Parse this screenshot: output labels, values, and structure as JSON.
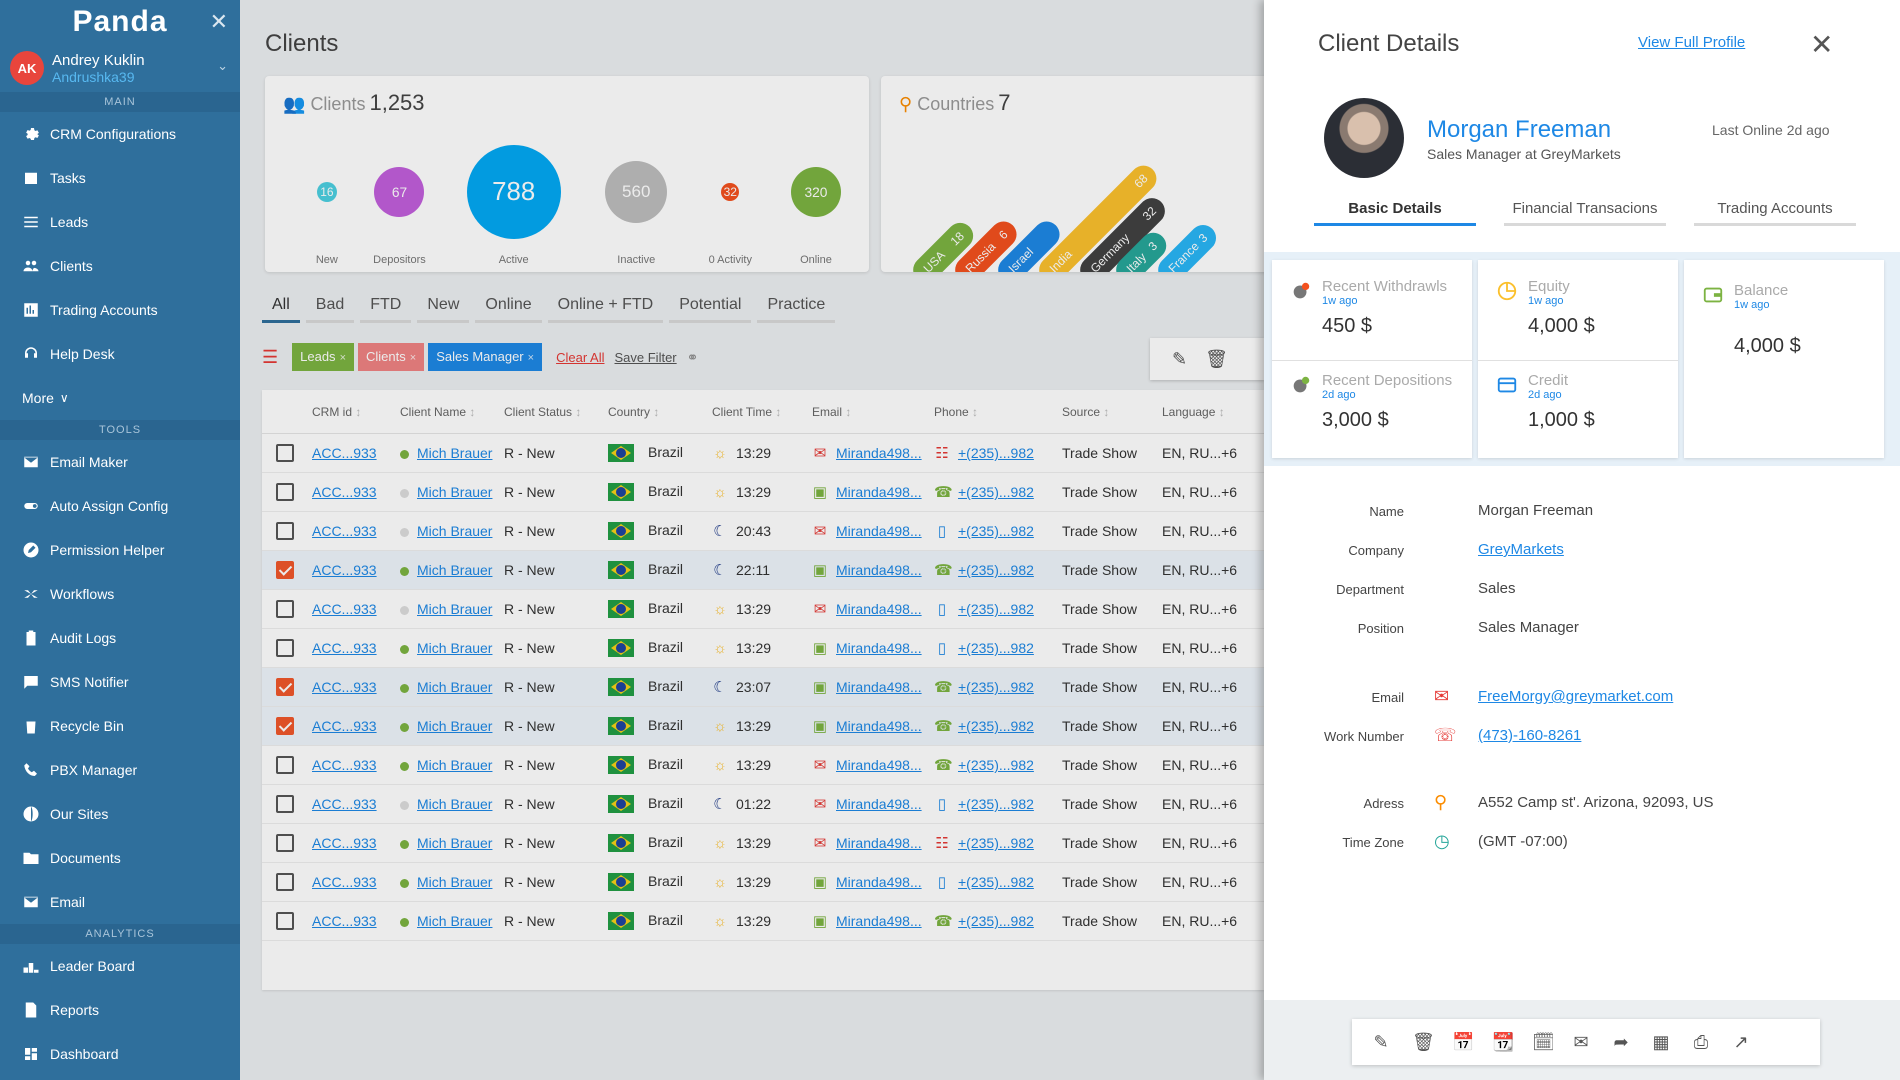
{
  "app": {
    "logo": "Panda",
    "close_glyph": "✕"
  },
  "user": {
    "initials": "AK",
    "name": "Andrey Kuklin",
    "handle": "Andrushka39",
    "chevron": "⌄"
  },
  "sidebar": {
    "main_title": "MAIN",
    "main": [
      {
        "label": "CRM Configurations",
        "icon": "gear-icon"
      },
      {
        "label": "Tasks",
        "icon": "calendar-icon"
      },
      {
        "label": "Leads",
        "icon": "list-icon"
      },
      {
        "label": "Clients",
        "icon": "users-icon"
      },
      {
        "label": "Trading Accounts",
        "icon": "bar-chart-icon"
      },
      {
        "label": "Help Desk",
        "icon": "headset-icon"
      }
    ],
    "more": "More",
    "tools_title": "TOOLS",
    "tools": [
      {
        "label": "Email Maker",
        "icon": "mail-icon"
      },
      {
        "label": "Auto Assign Config",
        "icon": "toggle-icon"
      },
      {
        "label": "Permission Helper",
        "icon": "pen-icon"
      },
      {
        "label": "Workflows",
        "icon": "shuffle-icon"
      },
      {
        "label": "Audit Logs",
        "icon": "clipboard-icon"
      },
      {
        "label": "SMS Notifier",
        "icon": "sms-icon"
      },
      {
        "label": "Recycle Bin",
        "icon": "recycle-icon"
      },
      {
        "label": "PBX Manager",
        "icon": "phone-icon"
      },
      {
        "label": "Our Sites",
        "icon": "globe-icon"
      },
      {
        "label": "Documents",
        "icon": "folder-icon"
      },
      {
        "label": "Email",
        "icon": "envelope-icon"
      }
    ],
    "analytics_title": "ANALYTICS",
    "analytics": [
      {
        "label": "Leader Board",
        "icon": "podium-icon"
      },
      {
        "label": "Reports",
        "icon": "report-icon"
      },
      {
        "label": "Dashboard",
        "icon": "dashboard-icon"
      }
    ]
  },
  "page": {
    "title": "Clients"
  },
  "clients_card": {
    "label": "Clients",
    "count": "1,253",
    "bubbles": [
      {
        "value": "16",
        "label": "New",
        "color": "#4dd0e1"
      },
      {
        "value": "67",
        "label": "Depositors",
        "color": "#c25fdc"
      },
      {
        "value": "788",
        "label": "Active",
        "color": "#03a9f4"
      },
      {
        "value": "560",
        "label": "Inactive",
        "color": "#bdbdbd"
      },
      {
        "value": "32",
        "label": "0 Activity",
        "color": "#f4511e"
      },
      {
        "value": "320",
        "label": "Online",
        "color": "#7cb342"
      }
    ]
  },
  "countries_card": {
    "label": "Countries",
    "count": "7",
    "pills": [
      {
        "name": "USA",
        "value": "18",
        "color": "#7cb342"
      },
      {
        "name": "Russia",
        "value": "6",
        "color": "#f4511e"
      },
      {
        "name": "Israel",
        "value": "",
        "color": "#1e88e5"
      },
      {
        "name": "India",
        "value": "68",
        "color": "#fbc02d"
      },
      {
        "name": "Germany",
        "value": "32",
        "color": "#424242"
      },
      {
        "name": "Italy",
        "value": "3",
        "color": "#26a69a"
      },
      {
        "name": "France",
        "value": "3",
        "color": "#29b6f6"
      }
    ]
  },
  "tabs": [
    "All",
    "Bad",
    "FTD",
    "New",
    "Online",
    "Online + FTD",
    "Potential",
    "Practice"
  ],
  "filters": {
    "chips": [
      {
        "label": "Leads",
        "color": "#7cb342"
      },
      {
        "label": "Clients",
        "color": "#ef8383"
      },
      {
        "label": "Sales Manager",
        "color": "#1e88e5"
      }
    ],
    "clear": "Clear All",
    "save": "Save Filter",
    "remove_glyph": "×"
  },
  "table": {
    "headers": [
      "CRM id",
      "Client Name",
      "Client Status",
      "Country",
      "Client Time",
      "Email",
      "Phone",
      "Source",
      "Language"
    ],
    "rows": [
      {
        "checked": false,
        "id": "ACC...933",
        "name": "Mich Brauer",
        "online": true,
        "status": "R - New",
        "country": "Brazil",
        "day": true,
        "time": "13:29",
        "email_icon": "mail",
        "email": "Miranda498...",
        "phone_icon": "fax",
        "phone": "+(235)...982",
        "source": "Trade Show",
        "lang": "EN, RU...+6"
      },
      {
        "checked": false,
        "id": "ACC...933",
        "name": "Mich Brauer",
        "online": false,
        "status": "R - New",
        "country": "Brazil",
        "day": true,
        "time": "13:29",
        "email_icon": "image",
        "email": "Miranda498...",
        "phone_icon": "phone",
        "phone": "+(235)...982",
        "source": "Trade Show",
        "lang": "EN, RU...+6"
      },
      {
        "checked": false,
        "id": "ACC...933",
        "name": "Mich Brauer",
        "online": false,
        "status": "R - New",
        "country": "Brazil",
        "day": false,
        "time": "20:43",
        "email_icon": "mail",
        "email": "Miranda498...",
        "phone_icon": "mobile",
        "phone": "+(235)...982",
        "source": "Trade Show",
        "lang": "EN, RU...+6"
      },
      {
        "checked": true,
        "id": "ACC...933",
        "name": "Mich Brauer",
        "online": true,
        "status": "R - New",
        "country": "Brazil",
        "day": false,
        "time": "22:11",
        "email_icon": "image",
        "email": "Miranda498...",
        "phone_icon": "phone",
        "phone": "+(235)...982",
        "source": "Trade Show",
        "lang": "EN, RU...+6"
      },
      {
        "checked": false,
        "id": "ACC...933",
        "name": "Mich Brauer",
        "online": false,
        "status": "R - New",
        "country": "Brazil",
        "day": true,
        "time": "13:29",
        "email_icon": "mail",
        "email": "Miranda498...",
        "phone_icon": "mobile",
        "phone": "+(235)...982",
        "source": "Trade Show",
        "lang": "EN, RU...+6"
      },
      {
        "checked": false,
        "id": "ACC...933",
        "name": "Mich Brauer",
        "online": true,
        "status": "R - New",
        "country": "Brazil",
        "day": true,
        "time": "13:29",
        "email_icon": "image",
        "email": "Miranda498...",
        "phone_icon": "mobile",
        "phone": "+(235)...982",
        "source": "Trade Show",
        "lang": "EN, RU...+6"
      },
      {
        "checked": true,
        "id": "ACC...933",
        "name": "Mich Brauer",
        "online": true,
        "status": "R - New",
        "country": "Brazil",
        "day": false,
        "time": "23:07",
        "email_icon": "image",
        "email": "Miranda498...",
        "phone_icon": "phone",
        "phone": "+(235)...982",
        "source": "Trade Show",
        "lang": "EN, RU...+6"
      },
      {
        "checked": true,
        "id": "ACC...933",
        "name": "Mich Brauer",
        "online": true,
        "status": "R - New",
        "country": "Brazil",
        "day": true,
        "time": "13:29",
        "email_icon": "image",
        "email": "Miranda498...",
        "phone_icon": "phone",
        "phone": "+(235)...982",
        "source": "Trade Show",
        "lang": "EN, RU...+6"
      },
      {
        "checked": false,
        "id": "ACC...933",
        "name": "Mich Brauer",
        "online": true,
        "status": "R - New",
        "country": "Brazil",
        "day": true,
        "time": "13:29",
        "email_icon": "mail",
        "email": "Miranda498...",
        "phone_icon": "phone",
        "phone": "+(235)...982",
        "source": "Trade Show",
        "lang": "EN, RU...+6"
      },
      {
        "checked": false,
        "id": "ACC...933",
        "name": "Mich Brauer",
        "online": false,
        "status": "R - New",
        "country": "Brazil",
        "day": false,
        "time": "01:22",
        "email_icon": "mail",
        "email": "Miranda498...",
        "phone_icon": "mobile",
        "phone": "+(235)...982",
        "source": "Trade Show",
        "lang": "EN, RU...+6"
      },
      {
        "checked": false,
        "id": "ACC...933",
        "name": "Mich Brauer",
        "online": true,
        "status": "R - New",
        "country": "Brazil",
        "day": true,
        "time": "13:29",
        "email_icon": "mail",
        "email": "Miranda498...",
        "phone_icon": "fax",
        "phone": "+(235)...982",
        "source": "Trade Show",
        "lang": "EN, RU...+6"
      },
      {
        "checked": false,
        "id": "ACC...933",
        "name": "Mich Brauer",
        "online": true,
        "status": "R - New",
        "country": "Brazil",
        "day": true,
        "time": "13:29",
        "email_icon": "image",
        "email": "Miranda498...",
        "phone_icon": "mobile",
        "phone": "+(235)...982",
        "source": "Trade Show",
        "lang": "EN, RU...+6"
      },
      {
        "checked": false,
        "id": "ACC...933",
        "name": "Mich Brauer",
        "online": true,
        "status": "R - New",
        "country": "Brazil",
        "day": true,
        "time": "13:29",
        "email_icon": "image",
        "email": "Miranda498...",
        "phone_icon": "phone",
        "phone": "+(235)...982",
        "source": "Trade Show",
        "lang": "EN, RU...+6"
      }
    ]
  },
  "panel": {
    "title": "Client Details",
    "view_profile": "View Full Profile",
    "close_glyph": "✕",
    "name": "Morgan Freeman",
    "role": "Sales Manager at GreyMarkets",
    "last_online": "Last Online 2d ago",
    "tabs": [
      "Basic Details",
      "Financial Transacions",
      "Trading Accounts"
    ],
    "fin": {
      "withdrawals": {
        "label": "Recent Withdrawls",
        "date": "1w ago",
        "value": "450 $"
      },
      "equity": {
        "label": "Equity",
        "date": "1w ago",
        "value": "4,000 $"
      },
      "balance": {
        "label": "Balance",
        "date": "1w ago",
        "value": "4,000 $"
      },
      "depositions": {
        "label": "Recent Depositions",
        "date": "2d ago",
        "value": "3,000 $"
      },
      "credit": {
        "label": "Credit",
        "date": "2d ago",
        "value": "1,000 $"
      }
    },
    "details": {
      "name_label": "Name",
      "name": "Morgan Freeman",
      "company_label": "Company",
      "company": "GreyMarkets",
      "department_label": "Department",
      "department": "Sales",
      "position_label": "Position",
      "position": "Sales Manager",
      "email_label": "Email",
      "email": "FreeMorgy@greymarket.com",
      "work_label": "Work Number",
      "work": "(473)-160-8261",
      "address_label": "Adress",
      "address": "A552 Camp st'. Arizona, 92093, US",
      "tz_label": "Time Zone",
      "tz": "(GMT -07:00)"
    }
  }
}
